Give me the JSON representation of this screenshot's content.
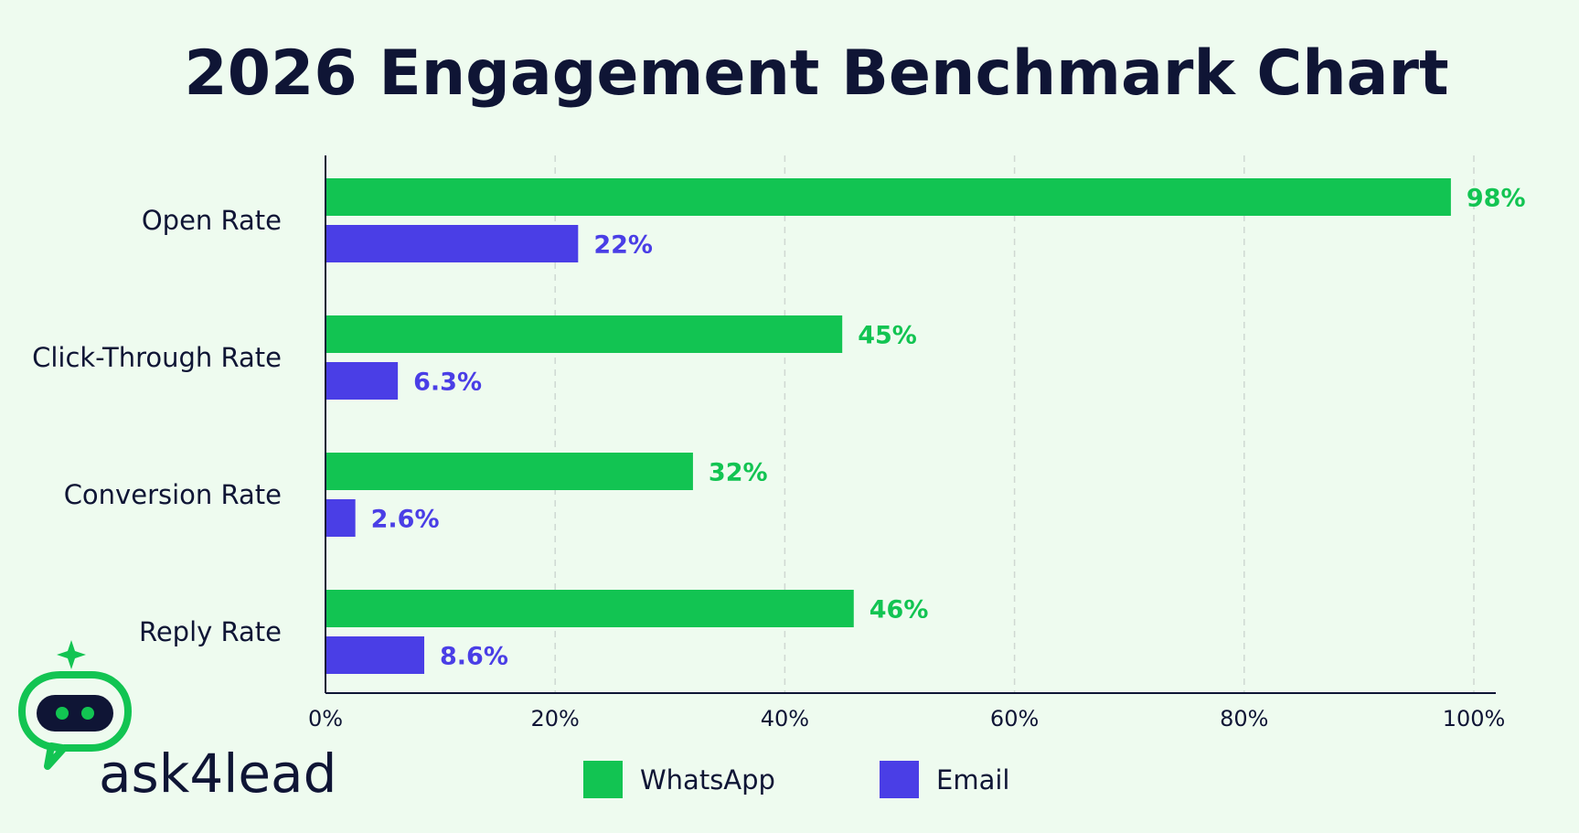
{
  "chart_data": {
    "type": "bar",
    "orientation": "horizontal",
    "title": "2026 Engagement Benchmark Chart",
    "categories": [
      "Open Rate",
      "Click-Through Rate",
      "Conversion Rate",
      "Reply Rate"
    ],
    "series": [
      {
        "name": "WhatsApp",
        "color": "#12c452",
        "values": [
          98,
          45,
          32,
          46
        ],
        "labels": [
          "98%",
          "45%",
          "32%",
          "46%"
        ]
      },
      {
        "name": "Email",
        "color": "#4a3ee6",
        "values": [
          22,
          6.3,
          2.6,
          8.6
        ],
        "labels": [
          "22%",
          "6.3%",
          "2.6%",
          "8.6%"
        ]
      }
    ],
    "xlim": [
      0,
      100
    ],
    "x_ticks": [
      0,
      20,
      40,
      60,
      80,
      100
    ],
    "x_tick_labels": [
      "0%",
      "20%",
      "40%",
      "60%",
      "80%",
      "100%"
    ],
    "grid": "vertical dashed",
    "legend_position": "bottom-center"
  },
  "brand": {
    "name": "ask4lead",
    "icon": "chat-robot-icon",
    "color": "#12c452"
  }
}
